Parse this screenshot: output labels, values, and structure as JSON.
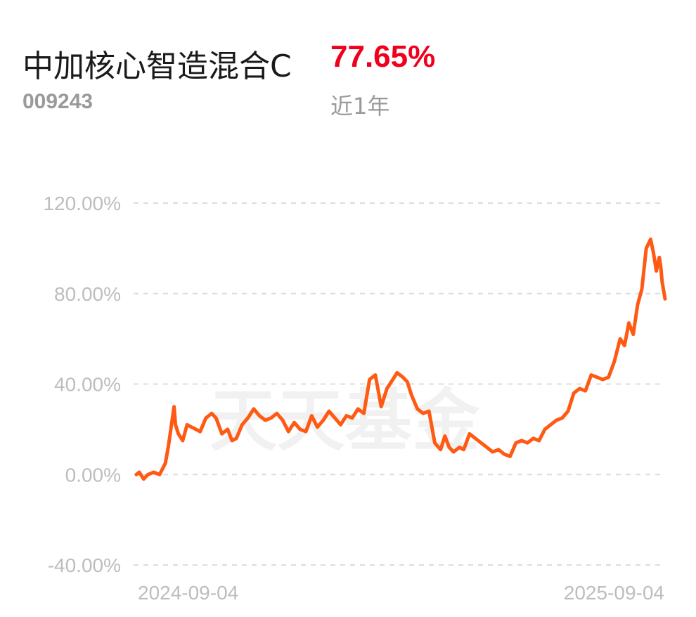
{
  "header": {
    "fund_name": "中加核心智造混合C",
    "fund_code": "009243",
    "return_value": "77.65%",
    "period_label": "近1年"
  },
  "watermark": "天天基金",
  "colors": {
    "line": "#ff5a14",
    "return_value": "#f0001c",
    "grid": "#dcdcdc",
    "axis_text": "#bdbdbd"
  },
  "chart_data": {
    "type": "line",
    "title": "",
    "xlabel": "",
    "ylabel": "",
    "ylim": [
      -40,
      120
    ],
    "yticks": [
      120,
      80,
      40,
      0,
      -40
    ],
    "ytick_labels": [
      "120.00%",
      "80.00%",
      "40.00%",
      "0.00%",
      "-40.00%"
    ],
    "xlim": [
      "2024-09-04",
      "2025-09-04"
    ],
    "xtick_labels": [
      "2024-09-04",
      "2025-09-04"
    ],
    "grid": true,
    "legend": "none",
    "series": [
      {
        "x": [
          "2024-09-04",
          "2024-09-06",
          "2024-09-09",
          "2024-09-12",
          "2024-09-16",
          "2024-09-20",
          "2024-09-24",
          "2024-09-26",
          "2024-09-30",
          "2024-10-01",
          "2024-10-03",
          "2024-10-06",
          "2024-10-09",
          "2024-10-12",
          "2024-10-15",
          "2024-10-18",
          "2024-10-22",
          "2024-10-26",
          "2024-10-29",
          "2024-11-02",
          "2024-11-06",
          "2024-11-09",
          "2024-11-12",
          "2024-11-16",
          "2024-11-20",
          "2024-11-24",
          "2024-11-28",
          "2024-12-02",
          "2024-12-06",
          "2024-12-10",
          "2024-12-14",
          "2024-12-18",
          "2024-12-22",
          "2024-12-26",
          "2024-12-30",
          "2025-01-03",
          "2025-01-07",
          "2025-01-11",
          "2025-01-15",
          "2025-01-19",
          "2025-01-23",
          "2025-01-27",
          "2025-01-31",
          "2025-02-04",
          "2025-02-08",
          "2025-02-12",
          "2025-02-16",
          "2025-02-20",
          "2025-02-24",
          "2025-02-28",
          "2025-03-03",
          "2025-03-07",
          "2025-03-10",
          "2025-03-13",
          "2025-03-17",
          "2025-03-21",
          "2025-03-25",
          "2025-03-29",
          "2025-04-02",
          "2025-04-05",
          "2025-04-08",
          "2025-04-11",
          "2025-04-15",
          "2025-04-18",
          "2025-04-22",
          "2025-04-26",
          "2025-04-30",
          "2025-05-04",
          "2025-05-08",
          "2025-05-12",
          "2025-05-16",
          "2025-05-20",
          "2025-05-24",
          "2025-05-28",
          "2025-06-01",
          "2025-06-05",
          "2025-06-09",
          "2025-06-13",
          "2025-06-17",
          "2025-06-21",
          "2025-06-25",
          "2025-06-29",
          "2025-07-03",
          "2025-07-07",
          "2025-07-11",
          "2025-07-15",
          "2025-07-19",
          "2025-07-23",
          "2025-07-27",
          "2025-07-31",
          "2025-08-04",
          "2025-08-07",
          "2025-08-10",
          "2025-08-13",
          "2025-08-16",
          "2025-08-19",
          "2025-08-22",
          "2025-08-25",
          "2025-08-27",
          "2025-08-29",
          "2025-08-31",
          "2025-09-01",
          "2025-09-02",
          "2025-09-04"
        ],
        "values": [
          0,
          1,
          -2,
          0,
          1,
          0,
          5,
          12,
          30,
          22,
          18,
          15,
          22,
          21,
          20,
          19,
          25,
          27,
          25,
          18,
          20,
          15,
          16,
          22,
          25,
          29,
          26,
          24,
          25,
          27,
          24,
          19,
          23,
          20,
          19,
          26,
          21,
          24,
          28,
          25,
          22,
          26,
          25,
          29,
          27,
          42,
          44,
          30,
          38,
          42,
          45,
          43,
          41,
          35,
          29,
          27,
          28,
          14,
          11,
          17,
          12,
          10,
          12,
          11,
          18,
          16,
          14,
          12,
          10,
          11,
          9,
          8,
          14,
          15,
          14,
          16,
          15,
          20,
          22,
          24,
          25,
          28,
          36,
          38,
          37,
          44,
          43,
          42,
          43,
          50,
          60,
          57,
          67,
          62,
          75,
          82,
          100,
          104,
          98,
          90,
          96,
          92,
          85,
          77.65
        ]
      }
    ]
  }
}
